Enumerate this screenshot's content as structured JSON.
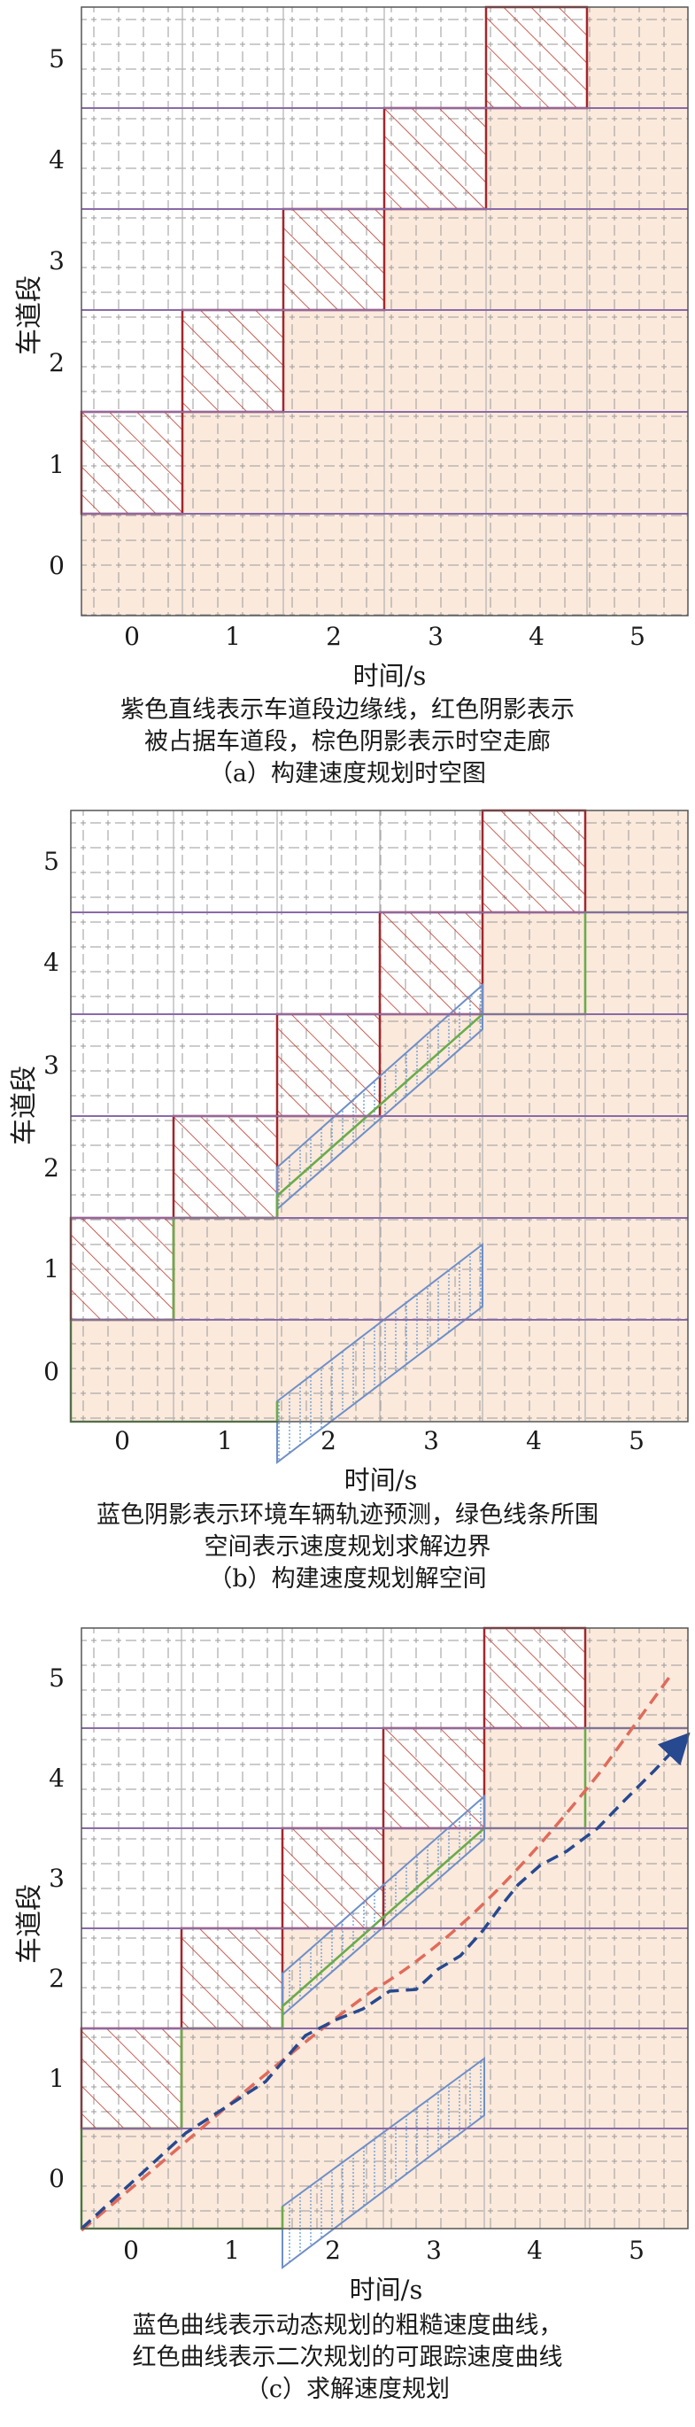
{
  "axis": {
    "x_label": "时间/s",
    "y_label": "车道段",
    "x_ticks": [
      "0",
      "1",
      "2",
      "3",
      "4",
      "5"
    ],
    "y_ticks": [
      "0",
      "1",
      "2",
      "3",
      "4",
      "5"
    ]
  },
  "colors": {
    "lane_boundary": "#8a6aa8",
    "occupied": "#b52b2b",
    "corridor": "#fbe9dc",
    "trajectory": "#6f9bd4",
    "boundary": "#6aab4a",
    "rough_curve": "#27498f",
    "smooth_curve": "#e06b5a"
  },
  "panels": [
    {
      "caption_line1": "紫色直线表示车道段边缘线，红色阴影表示",
      "caption_line2": "被占据车道段，棕色阴影表示时空走廊",
      "caption_title": "（a）构建速度规划时空图"
    },
    {
      "caption_line1": "蓝色阴影表示环境车辆轨迹预测，绿色线条所围",
      "caption_line2": "空间表示速度规划求解边界",
      "caption_title": "（b）构建速度规划解空间"
    },
    {
      "caption_line1": "蓝色曲线表示动态规划的粗糙速度曲线，",
      "caption_line2": "红色曲线表示二次规划的可跟踪速度曲线",
      "caption_title": "（c）求解速度规划"
    }
  ]
}
